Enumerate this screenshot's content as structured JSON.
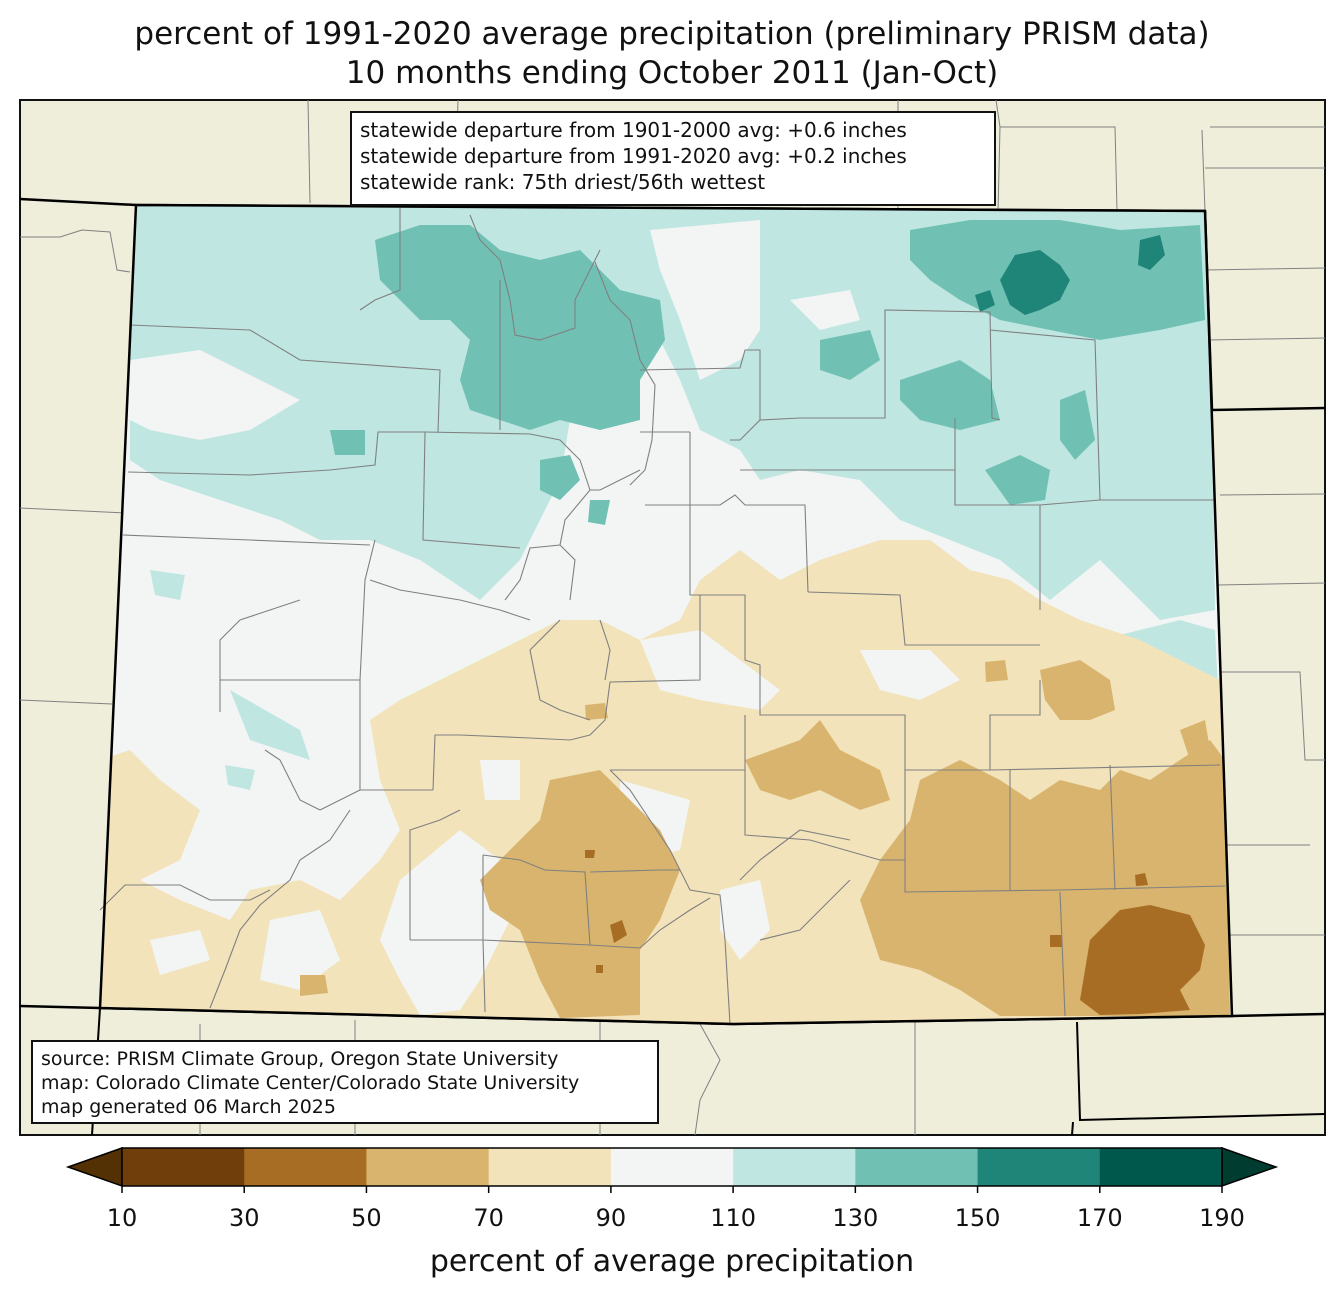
{
  "title": {
    "line1": "percent of 1991-2020 average precipitation (preliminary PRISM data)",
    "line2": "10 months ending October 2011 (Jan-Oct)"
  },
  "stats": {
    "departure_1901_2000": "statewide departure from 1901-2000 avg: +0.6 inches",
    "departure_1991_2020": "statewide departure from 1991-2020 avg: +0.2 inches",
    "rank": "statewide rank: 75th driest/56th wettest"
  },
  "credits": {
    "source": "source: PRISM Climate Group, Oregon State University",
    "map": "map: Colorado Climate Center/Colorado State University",
    "generated": "map generated 06 March 2025"
  },
  "colorbar": {
    "label": "percent of average precipitation",
    "ticks": [
      "10",
      "30",
      "50",
      "70",
      "90",
      "110",
      "130",
      "150",
      "170",
      "190"
    ],
    "under_color": "#543005",
    "over_color": "#003c30",
    "colors": [
      "#6f3e0a",
      "#a86d24",
      "#d8b46e",
      "#f2e3bb",
      "#f3f5f4",
      "#bfe6e1",
      "#70c1b4",
      "#208579",
      "#00574b"
    ]
  },
  "colors": {
    "background_land": "#efeedb",
    "state_border": "#000000",
    "county_border": "#808080"
  }
}
